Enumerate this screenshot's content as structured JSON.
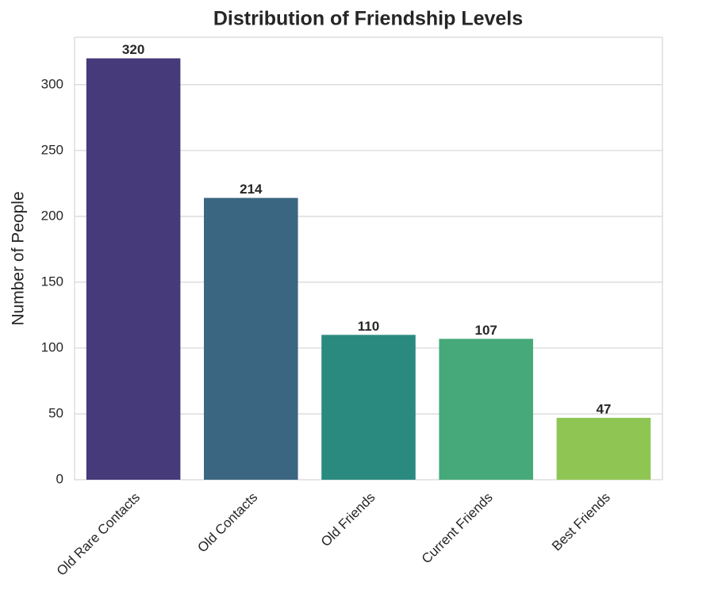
{
  "chart_data": {
    "type": "bar",
    "title": "Distribution of Friendship Levels",
    "y_label": "Number of People",
    "categories": [
      "Old Rare Contacts",
      "Old Contacts",
      "Old Friends",
      "Current Friends",
      "Best Friends"
    ],
    "values": [
      320,
      214,
      110,
      107,
      47
    ],
    "colors": [
      "#463a7a",
      "#3b6682",
      "#2a8a80",
      "#46a979",
      "#8fc653"
    ],
    "ylim": [
      0,
      336
    ],
    "yticks": [
      0,
      50,
      100,
      150,
      200,
      250,
      300
    ],
    "grid": true
  }
}
